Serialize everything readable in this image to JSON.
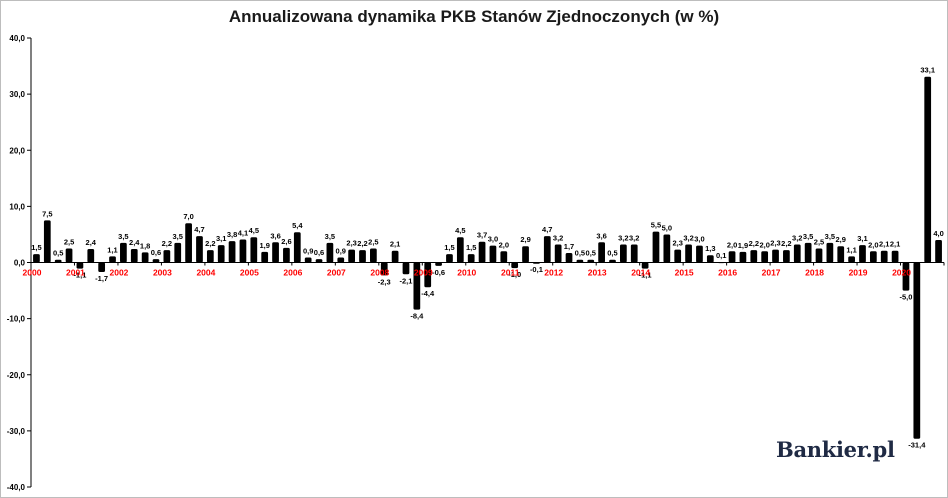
{
  "branding": {
    "logo_text": "Bankier.pl"
  },
  "chart_data": {
    "type": "bar",
    "title": "Annualizowana dynamika PKB Stanów Zjednoczonych (w %)",
    "ylim": [
      -40,
      40
    ],
    "yticks": [
      "40,0",
      "30,0",
      "20,0",
      "10,0",
      "0,0",
      "-10,0",
      "-20,0",
      "-30,0",
      "-40,0"
    ],
    "grid": false,
    "bar_color": "#000000",
    "year_label_color": "#ff0000",
    "year_labels": [
      "2000",
      "2001",
      "2002",
      "2003",
      "2004",
      "2005",
      "2006",
      "2007",
      "2008",
      "2009",
      "2010",
      "2011",
      "2012",
      "2013",
      "2014",
      "2015",
      "2016",
      "2017",
      "2018",
      "2019",
      "2020"
    ],
    "values": [
      1.5,
      7.5,
      0.5,
      2.5,
      -1.1,
      2.4,
      -1.7,
      1.1,
      3.5,
      2.4,
      1.8,
      0.6,
      2.2,
      3.5,
      7.0,
      4.7,
      2.2,
      3.1,
      3.8,
      4.1,
      4.5,
      1.9,
      3.6,
      2.6,
      5.4,
      0.9,
      0.6,
      3.5,
      0.9,
      2.3,
      2.2,
      2.5,
      -2.3,
      2.1,
      -2.1,
      -8.4,
      -4.4,
      -0.6,
      1.5,
      4.5,
      1.5,
      3.7,
      3.0,
      2.0,
      -1.0,
      2.9,
      -0.1,
      4.7,
      3.2,
      1.7,
      0.5,
      0.5,
      3.6,
      0.5,
      3.2,
      3.2,
      -1.1,
      5.5,
      5.0,
      2.3,
      3.2,
      3.0,
      1.3,
      0.1,
      2.0,
      1.9,
      2.2,
      2.0,
      2.3,
      2.2,
      3.2,
      3.5,
      2.5,
      3.5,
      2.9,
      1.1,
      3.1,
      2.0,
      2.1,
      2.1,
      -5.0,
      -31.4,
      33.1,
      4.0
    ],
    "data_labels": [
      "1,5",
      "7,5",
      "0,5",
      "2,5",
      "-1,1",
      "2,4",
      "-1,7",
      "1,1",
      "3,5",
      "2,4",
      "1,8",
      "0,6",
      "2,2",
      "3,5",
      "7,0",
      "4,7",
      "2,2",
      "3,1",
      "3,8",
      "4,1",
      "4,5",
      "1,9",
      "3,6",
      "2,6",
      "5,4",
      "0,9",
      "0,6",
      "3,5",
      "0,9",
      "2,3",
      "2,2",
      "2,5",
      "-2,3",
      "2,1",
      "-2,1",
      "-8,4",
      "-4,4",
      "-0,6",
      "1,5",
      "4,5",
      "1,5",
      "3,7",
      "3,0",
      "2,0",
      "-1,0",
      "2,9",
      "-0,1",
      "4,7",
      "3,2",
      "1,7",
      "0,5",
      "0,5",
      "3,6",
      "0,5",
      "3,2",
      "3,2",
      "-1,1",
      "5,5",
      "5,0",
      "2,3",
      "3,2",
      "3,0",
      "1,3",
      "0,1",
      "2,0",
      "1,9",
      "2,2",
      "2,0",
      "2,3",
      "2,2",
      "3,2",
      "3,5",
      "2,5",
      "3,5",
      "2,9",
      "1,1",
      "3,1",
      "2,0",
      "2,1",
      "2,1",
      "-5,0",
      "-31,4",
      "33,1",
      "4,0"
    ]
  }
}
